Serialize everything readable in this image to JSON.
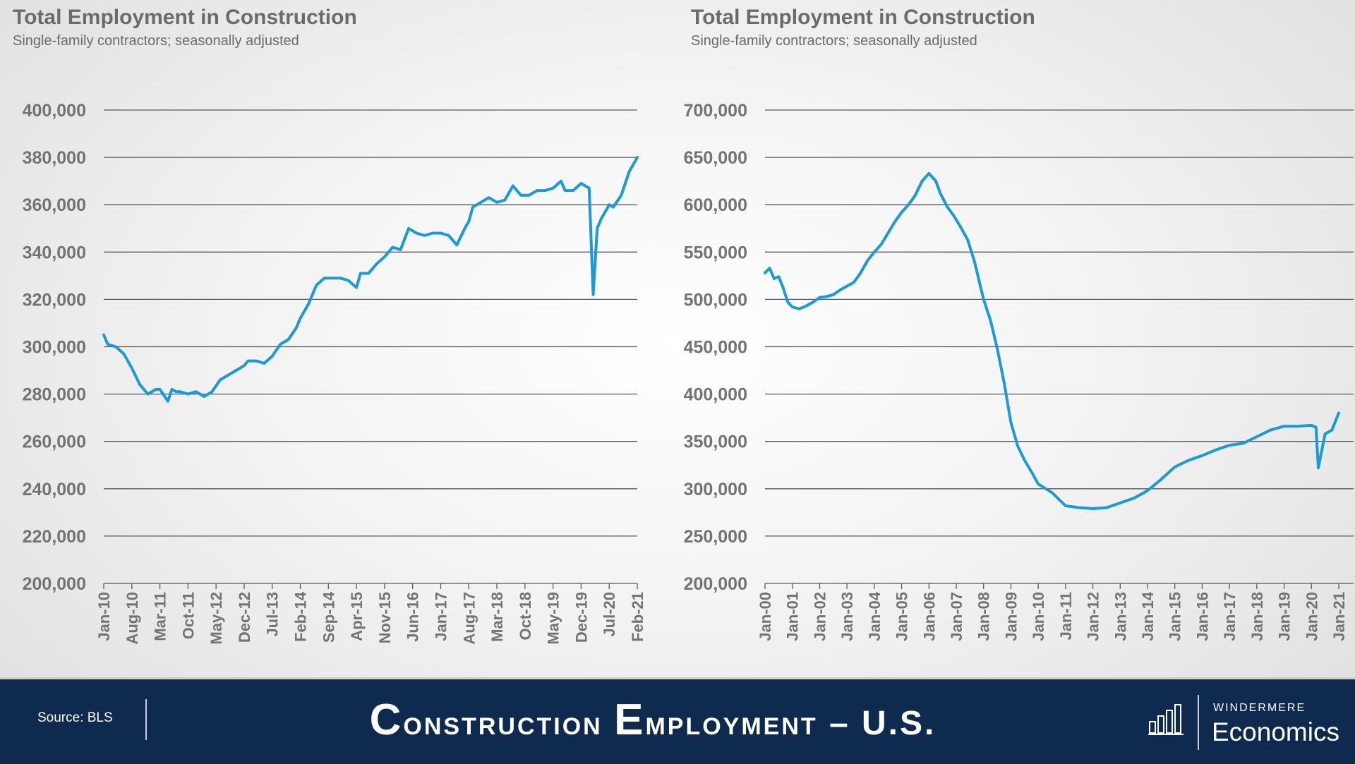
{
  "colors": {
    "line": "#1a9ad6",
    "grid": "#595959",
    "footer": "#0f2a4f"
  },
  "footer": {
    "source": "Source: BLS",
    "title_parts": [
      {
        "text": "C",
        "big": true
      },
      {
        "text": "onstruction ",
        "big": false
      },
      {
        "text": "E",
        "big": true
      },
      {
        "text": "mployment – U.S.",
        "big": false
      }
    ],
    "logo_top": "WINDERMERE",
    "logo_bottom": "Economics",
    "logo_icon": "bar-chart-icon"
  },
  "chart_data": [
    {
      "type": "line",
      "title": "Total Employment in Construction",
      "subtitle": "Single-family contractors; seasonally adjusted",
      "ylim": [
        200000,
        400000
      ],
      "yticks": [
        200000,
        220000,
        240000,
        260000,
        280000,
        300000,
        320000,
        340000,
        360000,
        380000,
        400000
      ],
      "ytick_labels": [
        "200,000",
        "220,000",
        "240,000",
        "260,000",
        "280,000",
        "300,000",
        "320,000",
        "340,000",
        "360,000",
        "380,000",
        "400,000"
      ],
      "xlim": [
        "2010-01",
        "2021-02"
      ],
      "xticks": [
        "2010-01",
        "2010-08",
        "2011-03",
        "2011-10",
        "2012-05",
        "2012-12",
        "2013-07",
        "2014-02",
        "2014-09",
        "2015-04",
        "2015-11",
        "2016-06",
        "2017-01",
        "2017-08",
        "2018-03",
        "2018-10",
        "2019-05",
        "2019-12",
        "2020-07",
        "2021-02"
      ],
      "xtick_labels": [
        "Jan-10",
        "Aug-10",
        "Mar-11",
        "Oct-11",
        "May-12",
        "Dec-12",
        "Jul-13",
        "Feb-14",
        "Sep-14",
        "Apr-15",
        "Nov-15",
        "Jun-16",
        "Jan-17",
        "Aug-17",
        "Mar-18",
        "Oct-18",
        "May-19",
        "Dec-19",
        "Jul-20",
        "Feb-21"
      ],
      "grid": true,
      "series": [
        {
          "x": [
            "2010-01",
            "2010-02",
            "2010-04",
            "2010-06",
            "2010-08",
            "2010-10",
            "2010-12",
            "2011-02",
            "2011-03",
            "2011-05",
            "2011-06",
            "2011-07",
            "2011-08",
            "2011-10",
            "2011-12",
            "2012-02",
            "2012-04",
            "2012-06",
            "2012-08",
            "2012-10",
            "2012-12",
            "2013-01",
            "2013-03",
            "2013-05",
            "2013-07",
            "2013-09",
            "2013-11",
            "2014-01",
            "2014-02",
            "2014-04",
            "2014-06",
            "2014-08",
            "2014-10",
            "2014-12",
            "2015-02",
            "2015-04",
            "2015-05",
            "2015-07",
            "2015-09",
            "2015-11",
            "2016-01",
            "2016-03",
            "2016-05",
            "2016-07",
            "2016-09",
            "2016-11",
            "2017-01",
            "2017-03",
            "2017-05",
            "2017-07",
            "2017-08",
            "2017-09",
            "2017-11",
            "2018-01",
            "2018-03",
            "2018-05",
            "2018-07",
            "2018-09",
            "2018-11",
            "2019-01",
            "2019-03",
            "2019-05",
            "2019-07",
            "2019-08",
            "2019-10",
            "2019-12",
            "2020-02",
            "2020-03",
            "2020-04",
            "2020-05",
            "2020-07",
            "2020-08",
            "2020-10",
            "2020-12",
            "2021-02"
          ],
          "y": [
            305000,
            301000,
            300000,
            297000,
            291000,
            284000,
            280000,
            282000,
            282000,
            277000,
            282000,
            281000,
            281000,
            280000,
            281000,
            279000,
            281000,
            286000,
            288000,
            290000,
            292000,
            294000,
            294000,
            293000,
            296000,
            301000,
            303000,
            308000,
            312000,
            318000,
            326000,
            329000,
            329000,
            329000,
            328000,
            325000,
            331000,
            331000,
            335000,
            338000,
            342000,
            341000,
            350000,
            348000,
            347000,
            348000,
            348000,
            347000,
            343000,
            350000,
            353000,
            359000,
            361000,
            363000,
            361000,
            362000,
            368000,
            364000,
            364000,
            366000,
            366000,
            367000,
            370000,
            366000,
            366000,
            369000,
            367000,
            322000,
            350000,
            354000,
            360000,
            359000,
            364000,
            374000,
            380000
          ]
        }
      ]
    },
    {
      "type": "line",
      "title": "Total Employment in Construction",
      "subtitle": "Single-family contractors; seasonally adjusted",
      "ylim": [
        200000,
        700000
      ],
      "yticks": [
        200000,
        250000,
        300000,
        350000,
        400000,
        450000,
        500000,
        550000,
        600000,
        650000,
        700000
      ],
      "ytick_labels": [
        "200,000",
        "250,000",
        "300,000",
        "350,000",
        "400,000",
        "450,000",
        "500,000",
        "550,000",
        "600,000",
        "650,000",
        "700,000"
      ],
      "xlim": [
        "2000-01",
        "2021-01"
      ],
      "xticks": [
        "2000-01",
        "2001-01",
        "2002-01",
        "2003-01",
        "2004-01",
        "2005-01",
        "2006-01",
        "2007-01",
        "2008-01",
        "2009-01",
        "2010-01",
        "2011-01",
        "2012-01",
        "2013-01",
        "2014-01",
        "2015-01",
        "2016-01",
        "2017-01",
        "2018-01",
        "2019-01",
        "2020-01",
        "2021-01"
      ],
      "xtick_labels": [
        "Jan-00",
        "Jan-01",
        "Jan-02",
        "Jan-03",
        "Jan-04",
        "Jan-05",
        "Jan-06",
        "Jan-07",
        "Jan-08",
        "Jan-09",
        "Jan-10",
        "Jan-11",
        "Jan-12",
        "Jan-13",
        "Jan-14",
        "Jan-15",
        "Jan-16",
        "Jan-17",
        "Jan-18",
        "Jan-19",
        "Jan-20",
        "Jan-21"
      ],
      "grid": true,
      "series": [
        {
          "x": [
            "2000-01",
            "2000-03",
            "2000-05",
            "2000-07",
            "2000-09",
            "2000-11",
            "2001-01",
            "2001-04",
            "2001-07",
            "2001-10",
            "2002-01",
            "2002-04",
            "2002-07",
            "2002-10",
            "2003-01",
            "2003-04",
            "2003-07",
            "2003-10",
            "2004-01",
            "2004-04",
            "2004-07",
            "2004-10",
            "2005-01",
            "2005-04",
            "2005-07",
            "2005-10",
            "2006-01",
            "2006-04",
            "2006-06",
            "2006-09",
            "2006-12",
            "2007-03",
            "2007-06",
            "2007-09",
            "2008-01",
            "2008-04",
            "2008-07",
            "2008-10",
            "2009-01",
            "2009-04",
            "2009-07",
            "2009-10",
            "2010-01",
            "2010-07",
            "2011-01",
            "2011-07",
            "2012-01",
            "2012-07",
            "2013-01",
            "2013-07",
            "2014-01",
            "2014-07",
            "2015-01",
            "2015-07",
            "2016-01",
            "2016-07",
            "2017-01",
            "2017-07",
            "2018-01",
            "2018-07",
            "2019-01",
            "2019-07",
            "2020-01",
            "2020-03",
            "2020-04",
            "2020-07",
            "2020-10",
            "2021-01"
          ],
          "y": [
            528000,
            533000,
            522000,
            524000,
            512000,
            497000,
            492000,
            490000,
            493000,
            497000,
            502000,
            503000,
            505000,
            510000,
            514000,
            518000,
            528000,
            541000,
            550000,
            558000,
            570000,
            582000,
            592000,
            600000,
            610000,
            625000,
            633000,
            625000,
            612000,
            598000,
            588000,
            576000,
            563000,
            540000,
            500000,
            478000,
            448000,
            412000,
            370000,
            345000,
            330000,
            318000,
            305000,
            296000,
            282000,
            280000,
            279000,
            280000,
            285000,
            290000,
            298000,
            310000,
            323000,
            330000,
            335000,
            341000,
            346000,
            348000,
            355000,
            362000,
            366000,
            366000,
            367000,
            365000,
            322000,
            358000,
            362000,
            380000
          ]
        }
      ]
    }
  ]
}
